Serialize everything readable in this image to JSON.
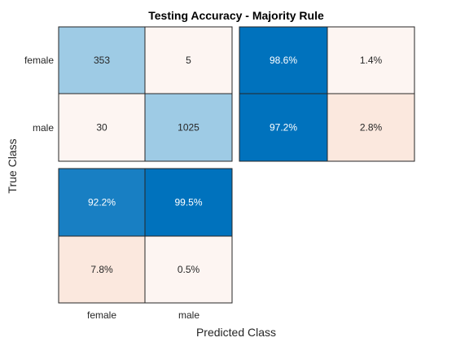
{
  "chart_data": {
    "type": "heatmap",
    "title": "Testing Accuracy - Majority Rule",
    "xlabel": "Predicted Class",
    "ylabel": "True Class",
    "classes": [
      "female",
      "male"
    ],
    "matrix": [
      [
        353,
        5
      ],
      [
        30,
        1025
      ]
    ],
    "row_summary": [
      [
        "98.6%",
        "1.4%"
      ],
      [
        "97.2%",
        "2.8%"
      ]
    ],
    "row_summary_values": [
      [
        98.6,
        1.4
      ],
      [
        97.2,
        2.8
      ]
    ],
    "column_summary": [
      [
        "92.2%",
        "99.5%"
      ],
      [
        "7.8%",
        "0.5%"
      ]
    ],
    "column_summary_values": [
      [
        92.2,
        99.5
      ],
      [
        7.8,
        0.5
      ]
    ],
    "colors": {
      "high": "#0072bd",
      "low": "#fdf5f2",
      "light_blue": "#9ecbe5",
      "pale_peach": "#fbe8de",
      "text_dark": "#262626",
      "text_light": "#ffffff"
    }
  }
}
